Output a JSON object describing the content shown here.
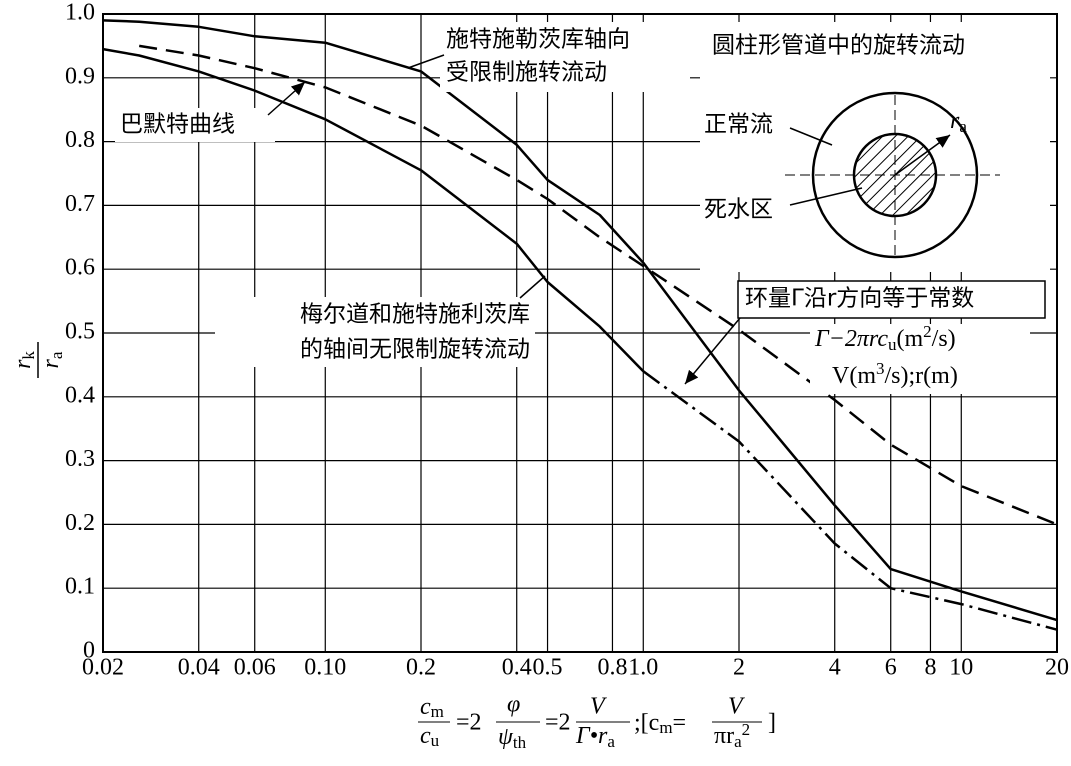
{
  "chart_data": {
    "type": "line",
    "x_scale": "log",
    "grid": true,
    "x": [
      0.02,
      0.026,
      0.04,
      0.06,
      0.1,
      0.2,
      0.4,
      0.5,
      0.73,
      1.0,
      2,
      4,
      6,
      10,
      20
    ],
    "series": [
      {
        "color": "#000000",
        "style": "solid",
        "values": [
          0.99,
          0.988,
          0.98,
          0.965,
          0.955,
          0.91,
          0.795,
          0.74,
          0.685,
          0.61,
          0.41,
          0.23,
          0.13,
          0.095,
          0.05
        ]
      },
      {
        "color": "#000000",
        "style": "solid",
        "values": [
          0.945,
          0.935,
          0.91,
          0.88,
          0.835,
          0.755,
          0.64,
          0.58,
          0.51,
          0.44,
          null,
          null,
          null,
          null,
          null
        ]
      },
      {
        "color": "#000000",
        "style": "dashdot",
        "values": [
          null,
          null,
          null,
          null,
          null,
          null,
          null,
          null,
          null,
          0.44,
          0.33,
          0.17,
          0.1,
          0.075,
          0.035
        ]
      },
      {
        "color": "#000000",
        "style": "dashed",
        "values": [
          null,
          0.95,
          0.935,
          0.915,
          0.885,
          0.825,
          0.74,
          0.71,
          0.65,
          0.605,
          0.505,
          0.395,
          0.325,
          0.26,
          0.2
        ]
      }
    ],
    "xlim": [
      0.02,
      20
    ],
    "ylim": [
      0,
      1
    ],
    "xticks": [
      0.02,
      0.04,
      0.06,
      {
        "value": 0.1,
        "label": "0.10"
      },
      0.2,
      0.4,
      0.5,
      0.8,
      {
        "value": 1,
        "label": "1.0"
      },
      2,
      4,
      6,
      8,
      10,
      20
    ],
    "yticks": [
      0,
      0.1,
      0.2,
      0.3,
      0.4,
      0.5,
      0.6,
      0.7,
      0.8,
      0.9,
      {
        "value": 1,
        "label": "1.0"
      }
    ],
    "y_label": [
      "r",
      "k",
      "r",
      "a"
    ],
    "x_label": [
      "c",
      "m",
      "c",
      "u",
      "=2",
      "φ",
      "ψ",
      "th",
      "=2",
      "V",
      "Γ•r",
      "a",
      ";[c",
      "m",
      "=",
      "V",
      "πr",
      "a",
      "2",
      "]"
    ],
    "annotations": {
      "upper": [
        "施特施勒茨库轴向",
        "受限制施转流动"
      ],
      "bammert": "巴默特曲线",
      "lower": [
        "梅尔道和施特施利茨库",
        "的轴间无限制旋转流动"
      ],
      "constant": "环量Γ沿r方向等于常数",
      "gamma_def": [
        "Γ−2πrc",
        "u",
        "(m",
        "2",
        "/s)"
      ],
      "v_def": [
        "V(m",
        "3",
        "/s);r(m)"
      ]
    },
    "inset": {
      "title": "圆柱形管道中的旋转流动",
      "normal": "正常流",
      "dead": "死水区",
      "radius": [
        "r",
        "a"
      ]
    }
  }
}
